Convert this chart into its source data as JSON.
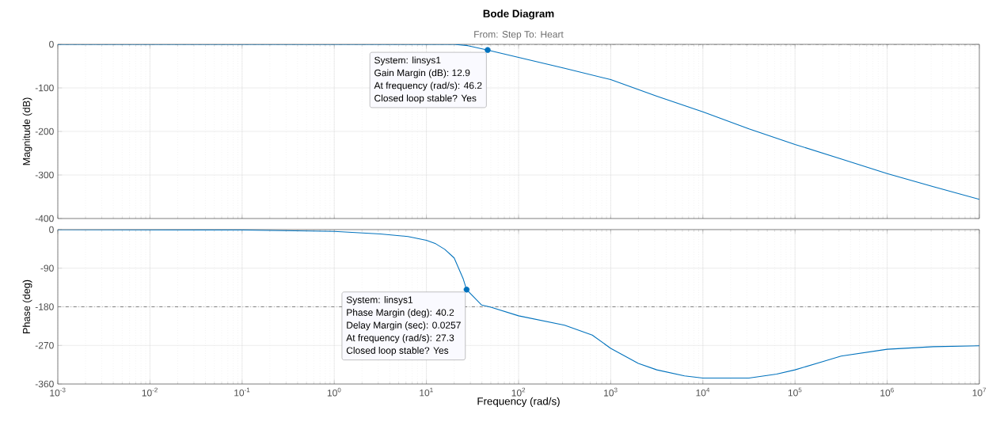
{
  "chart_data": [
    {
      "type": "line",
      "title": "Bode Diagram",
      "subtitle": "From: Step  To: Heart",
      "ylabel": "Magnitude (dB)",
      "log": "x",
      "grid": true,
      "tick_labels": "y",
      "xlim": [
        0.001,
        10000000
      ],
      "xticks": [
        0.001,
        0.01,
        0.1,
        1,
        10,
        100,
        1000,
        10000,
        100000,
        1000000,
        10000000
      ],
      "ylim": [
        -400,
        0
      ],
      "yticks": [
        0,
        -100,
        -200,
        -300,
        -400
      ],
      "ref_lines": [
        {
          "axis": "y",
          "value": 0,
          "line_style": "dashdot",
          "color": "#808080"
        }
      ],
      "annotations": [
        "System: linsys1",
        "Gain Margin (dB): 12.9",
        "At frequency (rad/s): 46.2",
        "Closed loop stable? Yes"
      ],
      "series": [
        {
          "color": "#0072bd",
          "x": [
            0.001,
            0.1,
            1,
            10,
            20,
            28.2,
            46.2,
            100,
            316,
            1000,
            3162,
            10000,
            31623,
            100000,
            316228,
            1000000,
            3162278,
            10000000
          ],
          "values": [
            0,
            0,
            0,
            0,
            0,
            -3,
            -13,
            -30,
            -55,
            -81,
            -119,
            -155,
            -194,
            -230,
            -263,
            -297,
            -327,
            -356
          ]
        },
        {
          "type": "scatter",
          "marker": "circle",
          "color": "#0072bd",
          "x": [
            46.2
          ],
          "values": [
            -13
          ]
        }
      ]
    },
    {
      "type": "line",
      "xlabel": "Frequency  (rad/s)",
      "ylabel": "Phase (deg)",
      "log": "x",
      "grid": true,
      "xlim": [
        0.001,
        10000000
      ],
      "xticks": [
        {
          "value": 0.001,
          "label": "10$^{-3}$"
        },
        {
          "value": 0.01,
          "label": "10$^{-2}$"
        },
        {
          "value": 0.1,
          "label": "10$^{-1}$"
        },
        {
          "value": 1,
          "label": "10$^{0}$"
        },
        {
          "value": 10,
          "label": "10$^{1}$"
        },
        {
          "value": 100,
          "label": "10$^{2}$"
        },
        {
          "value": 1000,
          "label": "10$^{3}$"
        },
        {
          "value": 10000,
          "label": "10$^{4}$"
        },
        {
          "value": 100000,
          "label": "10$^{5}$"
        },
        {
          "value": 1000000,
          "label": "10$^{6}$"
        },
        {
          "value": 10000000,
          "label": "10$^{7}$"
        }
      ],
      "ylim": [
        -360,
        0
      ],
      "yticks": [
        0,
        -90,
        -180,
        -270,
        -360
      ],
      "ref_lines": [
        {
          "axis": "y",
          "value": -180,
          "line_style": "dashdot",
          "color": "#808080"
        }
      ],
      "annotations": [
        "System: linsys1",
        "Phase Margin (deg): 40.2",
        "Delay Margin (sec): 0.0257",
        "At frequency (rad/s): 27.3",
        "Closed loop stable? Yes"
      ],
      "series": [
        {
          "color": "#0072bd",
          "x": [
            0.001,
            0.1,
            1,
            3.16,
            6.31,
            10,
            12.6,
            15.8,
            20,
            25.1,
            27.3,
            39.8,
            50.1,
            100,
            316,
            631,
            1000,
            1995,
            3162,
            6310,
            10000,
            31623,
            63096,
            100000,
            199526,
            316228,
            1000000,
            3162278,
            10000000
          ],
          "values": [
            0,
            -1,
            -4,
            -10,
            -16,
            -25,
            -33,
            -46,
            -66,
            -115,
            -140,
            -176,
            -181,
            -201,
            -223,
            -246,
            -277,
            -312,
            -327,
            -341,
            -346,
            -346,
            -337,
            -327,
            -308,
            -295,
            -279,
            -273,
            -271
          ]
        },
        {
          "type": "scatter",
          "marker": "circle",
          "color": "#0072bd",
          "x": [
            27.3
          ],
          "values": [
            -140
          ]
        }
      ]
    }
  ]
}
